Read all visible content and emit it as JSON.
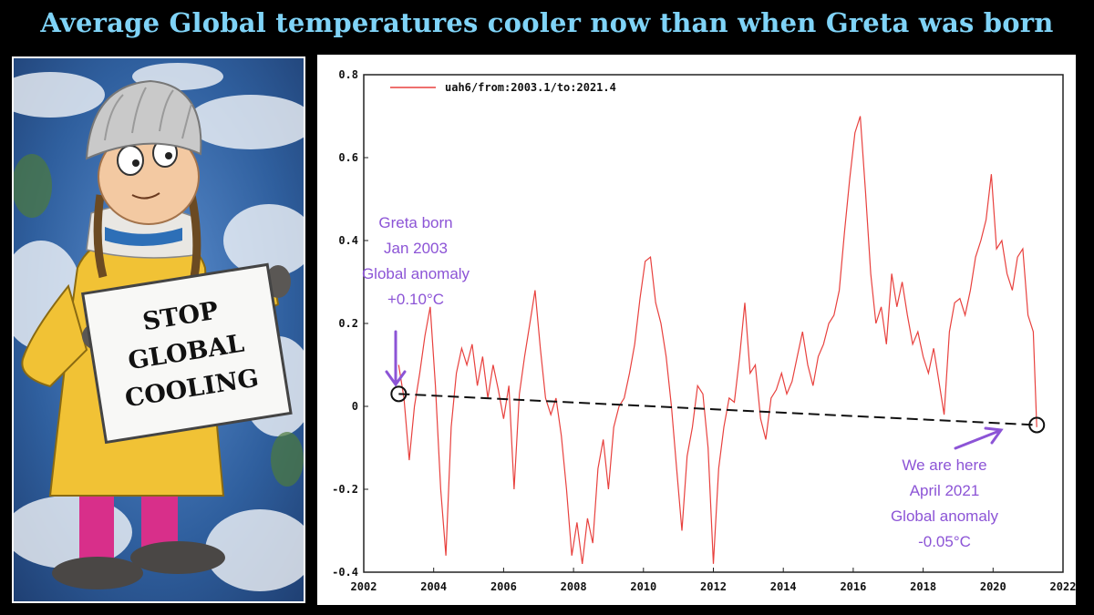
{
  "headline": "Average Global temperatures cooler now than when Greta was born",
  "sign": {
    "line1": "STOP",
    "line2": "GLOBAL",
    "line3": "COOLING"
  },
  "colors": {
    "headline": "#7fd3f7",
    "series": "#e8413e",
    "annotation": "#8c54d6",
    "trend": "#111111"
  },
  "chart_data": {
    "type": "line",
    "legend": "uah6/from:2003.1/to:2021.4",
    "legend_position": "top-left",
    "xlim": [
      2002,
      2022
    ],
    "ylim": [
      -0.4,
      0.8
    ],
    "xticks": [
      "2002",
      "2004",
      "2006",
      "2008",
      "2010",
      "2012",
      "2014",
      "2016",
      "2018",
      "2020",
      "2022"
    ],
    "yticks": [
      "0.8",
      "0.6",
      "0.4",
      "0.2",
      "0",
      "-0.2",
      "-0.4"
    ],
    "series": [
      {
        "name": "uah6/from:2003.1/to:2021.4",
        "x": [
          2003.0,
          2003.15,
          2003.3,
          2003.45,
          2003.6,
          2003.75,
          2003.9,
          2004.05,
          2004.2,
          2004.35,
          2004.5,
          2004.65,
          2004.8,
          2004.95,
          2005.1,
          2005.25,
          2005.4,
          2005.55,
          2005.7,
          2005.85,
          2006.0,
          2006.15,
          2006.3,
          2006.45,
          2006.6,
          2006.75,
          2006.9,
          2007.05,
          2007.2,
          2007.35,
          2007.5,
          2007.65,
          2007.8,
          2007.95,
          2008.1,
          2008.25,
          2008.4,
          2008.55,
          2008.7,
          2008.85,
          2009.0,
          2009.15,
          2009.3,
          2009.45,
          2009.6,
          2009.75,
          2009.9,
          2010.05,
          2010.2,
          2010.35,
          2010.5,
          2010.65,
          2010.8,
          2010.95,
          2011.1,
          2011.25,
          2011.4,
          2011.55,
          2011.7,
          2011.85,
          2012.0,
          2012.15,
          2012.3,
          2012.45,
          2012.6,
          2012.75,
          2012.9,
          2013.05,
          2013.2,
          2013.35,
          2013.5,
          2013.65,
          2013.8,
          2013.95,
          2014.1,
          2014.25,
          2014.4,
          2014.55,
          2014.7,
          2014.85,
          2015.0,
          2015.15,
          2015.3,
          2015.45,
          2015.6,
          2015.75,
          2015.9,
          2016.05,
          2016.2,
          2016.35,
          2016.5,
          2016.65,
          2016.8,
          2016.95,
          2017.1,
          2017.25,
          2017.4,
          2017.55,
          2017.7,
          2017.85,
          2018.0,
          2018.15,
          2018.3,
          2018.45,
          2018.6,
          2018.75,
          2018.9,
          2019.05,
          2019.2,
          2019.35,
          2019.5,
          2019.65,
          2019.8,
          2019.95,
          2020.1,
          2020.25,
          2020.4,
          2020.55,
          2020.7,
          2020.85,
          2021.0,
          2021.15,
          2021.25
        ],
        "y": [
          0.1,
          0.02,
          -0.13,
          0.0,
          0.08,
          0.17,
          0.24,
          0.05,
          -0.2,
          -0.36,
          -0.05,
          0.08,
          0.14,
          0.1,
          0.15,
          0.05,
          0.12,
          0.02,
          0.1,
          0.04,
          -0.03,
          0.05,
          -0.2,
          0.03,
          0.12,
          0.2,
          0.28,
          0.14,
          0.02,
          -0.02,
          0.02,
          -0.07,
          -0.2,
          -0.36,
          -0.28,
          -0.38,
          -0.27,
          -0.33,
          -0.15,
          -0.08,
          -0.2,
          -0.05,
          0.0,
          0.02,
          0.08,
          0.15,
          0.26,
          0.35,
          0.36,
          0.25,
          0.2,
          0.12,
          0.0,
          -0.15,
          -0.3,
          -0.12,
          -0.05,
          0.05,
          0.03,
          -0.1,
          -0.38,
          -0.15,
          -0.05,
          0.02,
          0.01,
          0.12,
          0.25,
          0.08,
          0.1,
          -0.03,
          -0.08,
          0.02,
          0.04,
          0.08,
          0.03,
          0.06,
          0.12,
          0.18,
          0.1,
          0.05,
          0.12,
          0.15,
          0.2,
          0.22,
          0.28,
          0.42,
          0.55,
          0.66,
          0.7,
          0.52,
          0.32,
          0.2,
          0.24,
          0.15,
          0.32,
          0.24,
          0.3,
          0.22,
          0.15,
          0.18,
          0.12,
          0.08,
          0.14,
          0.06,
          -0.02,
          0.18,
          0.25,
          0.26,
          0.22,
          0.28,
          0.36,
          0.4,
          0.45,
          0.56,
          0.38,
          0.4,
          0.32,
          0.28,
          0.36,
          0.38,
          0.22,
          0.18,
          -0.05
        ]
      }
    ],
    "trend_line": {
      "from": [
        2003.0,
        0.03
      ],
      "to": [
        2021.25,
        -0.045
      ],
      "style": "dashed"
    },
    "markers": [
      {
        "x": 2003.0,
        "y": 0.03
      },
      {
        "x": 2021.25,
        "y": -0.045
      }
    ],
    "annotations": {
      "start": {
        "lines": [
          "Greta born",
          "Jan 2003",
          "Global anomaly",
          "+0.10°C"
        ],
        "value": 0.1
      },
      "end": {
        "lines": [
          "We are here",
          "April 2021",
          "Global anomaly",
          "-0.05°C"
        ],
        "value": -0.05
      }
    }
  }
}
